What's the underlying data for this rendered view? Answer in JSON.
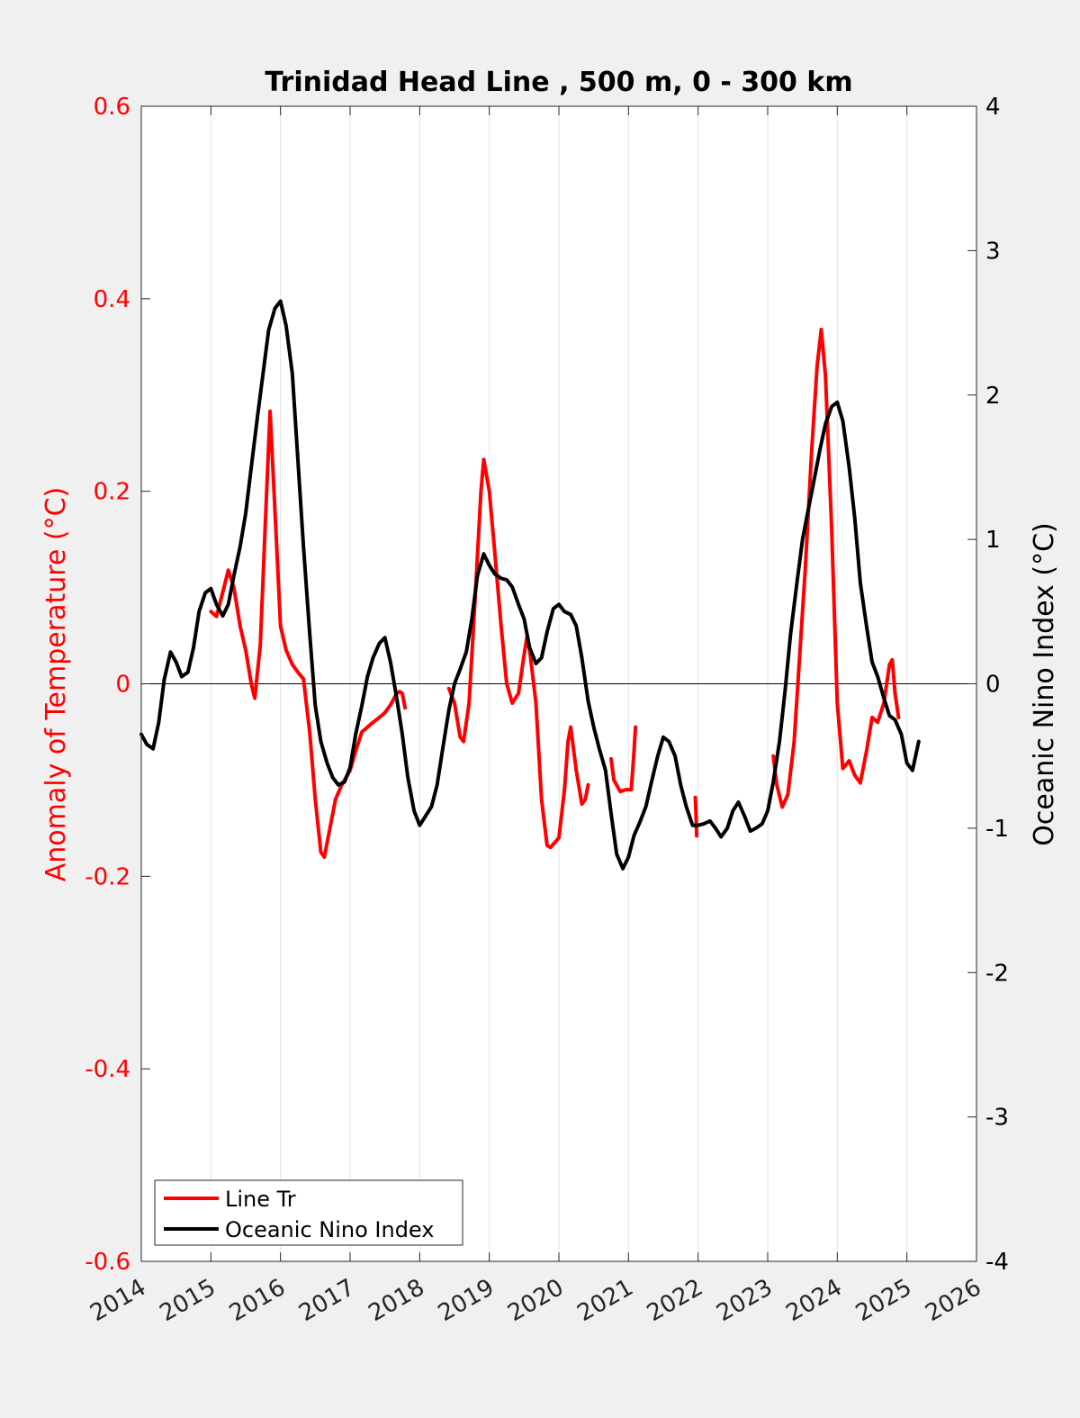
{
  "chart_data": {
    "type": "line",
    "title": "Trinidad Head Line , 500 m, 0 - 300 km",
    "ylabel_left": "Anomaly of Temperature (°C)",
    "ylabel_right": "Oceanic Nino Index (°C)",
    "xlim": [
      2014,
      2026
    ],
    "xticks": [
      "2014",
      "2015",
      "2016",
      "2017",
      "2018",
      "2019",
      "2020",
      "2021",
      "2022",
      "2023",
      "2024",
      "2025",
      "2026"
    ],
    "ylim_left": [
      -0.6,
      0.6
    ],
    "yticks_left": [
      "-0.6",
      "-0.4",
      "-0.2",
      "0",
      "0.2",
      "0.4",
      "0.6"
    ],
    "ylim_right": [
      -4,
      4
    ],
    "yticks_right": [
      "-4",
      "-3",
      "-2",
      "-1",
      "0",
      "1",
      "2",
      "3",
      "4"
    ],
    "grid": "vertical",
    "legend_position": "bottom-left",
    "colors": {
      "line_tr": "#ff0000",
      "oni": "#000000",
      "left_axis": "#ff0000"
    },
    "series": [
      {
        "name": "Line Tr",
        "axis": "left",
        "segments": [
          [
            [
              2015.0,
              0.075
            ],
            [
              2015.08,
              0.07
            ],
            [
              2015.17,
              0.095
            ],
            [
              2015.25,
              0.118
            ],
            [
              2015.33,
              0.1
            ],
            [
              2015.42,
              0.06
            ],
            [
              2015.5,
              0.035
            ],
            [
              2015.58,
              0.0
            ],
            [
              2015.63,
              -0.015
            ],
            [
              2015.71,
              0.04
            ],
            [
              2015.79,
              0.18
            ],
            [
              2015.85,
              0.283
            ],
            [
              2015.92,
              0.18
            ],
            [
              2016.0,
              0.06
            ],
            [
              2016.08,
              0.035
            ],
            [
              2016.17,
              0.02
            ],
            [
              2016.25,
              0.012
            ],
            [
              2016.33,
              0.005
            ],
            [
              2016.42,
              -0.05
            ],
            [
              2016.5,
              -0.12
            ],
            [
              2016.58,
              -0.175
            ],
            [
              2016.63,
              -0.18
            ],
            [
              2016.71,
              -0.15
            ],
            [
              2016.79,
              -0.12
            ],
            [
              2016.88,
              -0.105
            ],
            [
              2017.0,
              -0.09
            ],
            [
              2017.08,
              -0.07
            ],
            [
              2017.17,
              -0.05
            ],
            [
              2017.25,
              -0.045
            ],
            [
              2017.33,
              -0.04
            ],
            [
              2017.42,
              -0.035
            ],
            [
              2017.5,
              -0.03
            ],
            [
              2017.58,
              -0.022
            ],
            [
              2017.67,
              -0.01
            ],
            [
              2017.71,
              -0.008
            ],
            [
              2017.75,
              -0.01
            ],
            [
              2017.79,
              -0.025
            ]
          ],
          [
            [
              2018.42,
              -0.005
            ],
            [
              2018.5,
              -0.02
            ],
            [
              2018.58,
              -0.055
            ],
            [
              2018.63,
              -0.06
            ],
            [
              2018.71,
              -0.02
            ],
            [
              2018.79,
              0.08
            ],
            [
              2018.88,
              0.2
            ],
            [
              2018.92,
              0.233
            ],
            [
              2019.0,
              0.2
            ],
            [
              2019.08,
              0.135
            ],
            [
              2019.17,
              0.06
            ],
            [
              2019.25,
              0.0
            ],
            [
              2019.33,
              -0.02
            ],
            [
              2019.42,
              -0.01
            ],
            [
              2019.5,
              0.03
            ],
            [
              2019.54,
              0.048
            ],
            [
              2019.58,
              0.035
            ],
            [
              2019.67,
              -0.02
            ],
            [
              2019.75,
              -0.12
            ],
            [
              2019.83,
              -0.168
            ],
            [
              2019.88,
              -0.17
            ],
            [
              2020.0,
              -0.16
            ],
            [
              2020.08,
              -0.11
            ],
            [
              2020.13,
              -0.06
            ],
            [
              2020.17,
              -0.045
            ],
            [
              2020.25,
              -0.09
            ],
            [
              2020.33,
              -0.125
            ],
            [
              2020.38,
              -0.12
            ],
            [
              2020.42,
              -0.105
            ]
          ],
          [
            [
              2020.75,
              -0.078
            ],
            [
              2020.79,
              -0.1
            ],
            [
              2020.88,
              -0.112
            ],
            [
              2020.96,
              -0.11
            ],
            [
              2021.04,
              -0.11
            ],
            [
              2021.08,
              -0.07
            ],
            [
              2021.1,
              -0.045
            ]
          ],
          [
            [
              2021.96,
              -0.118
            ],
            [
              2021.97,
              -0.135
            ],
            [
              2021.98,
              -0.158
            ]
          ],
          [
            [
              2023.08,
              -0.075
            ],
            [
              2023.13,
              -0.105
            ],
            [
              2023.21,
              -0.128
            ],
            [
              2023.29,
              -0.115
            ],
            [
              2023.38,
              -0.06
            ],
            [
              2023.46,
              0.03
            ],
            [
              2023.54,
              0.12
            ],
            [
              2023.63,
              0.24
            ],
            [
              2023.71,
              0.33
            ],
            [
              2023.77,
              0.368
            ],
            [
              2023.83,
              0.32
            ],
            [
              2023.92,
              0.16
            ],
            [
              2024.0,
              -0.02
            ],
            [
              2024.08,
              -0.088
            ],
            [
              2024.17,
              -0.08
            ],
            [
              2024.25,
              -0.095
            ],
            [
              2024.33,
              -0.103
            ],
            [
              2024.42,
              -0.07
            ],
            [
              2024.5,
              -0.035
            ],
            [
              2024.58,
              -0.04
            ],
            [
              2024.67,
              -0.02
            ],
            [
              2024.75,
              0.02
            ],
            [
              2024.79,
              0.025
            ],
            [
              2024.83,
              -0.01
            ],
            [
              2024.88,
              -0.035
            ]
          ]
        ]
      },
      {
        "name": "Oceanic Nino Index",
        "axis": "right",
        "segments": [
          [
            [
              2014.0,
              -0.35
            ],
            [
              2014.08,
              -0.42
            ],
            [
              2014.17,
              -0.45
            ],
            [
              2014.25,
              -0.27
            ],
            [
              2014.33,
              0.03
            ],
            [
              2014.42,
              0.22
            ],
            [
              2014.5,
              0.15
            ],
            [
              2014.58,
              0.05
            ],
            [
              2014.67,
              0.08
            ],
            [
              2014.75,
              0.25
            ],
            [
              2014.83,
              0.5
            ],
            [
              2014.92,
              0.63
            ],
            [
              2015.0,
              0.66
            ],
            [
              2015.08,
              0.55
            ],
            [
              2015.17,
              0.47
            ],
            [
              2015.25,
              0.55
            ],
            [
              2015.33,
              0.75
            ],
            [
              2015.42,
              0.95
            ],
            [
              2015.5,
              1.18
            ],
            [
              2015.58,
              1.5
            ],
            [
              2015.67,
              1.85
            ],
            [
              2015.75,
              2.15
            ],
            [
              2015.83,
              2.45
            ],
            [
              2015.92,
              2.6
            ],
            [
              2016.0,
              2.65
            ],
            [
              2016.08,
              2.48
            ],
            [
              2016.17,
              2.15
            ],
            [
              2016.25,
              1.55
            ],
            [
              2016.33,
              0.95
            ],
            [
              2016.42,
              0.35
            ],
            [
              2016.5,
              -0.15
            ],
            [
              2016.58,
              -0.4
            ],
            [
              2016.67,
              -0.55
            ],
            [
              2016.75,
              -0.65
            ],
            [
              2016.83,
              -0.7
            ],
            [
              2016.92,
              -0.68
            ],
            [
              2017.0,
              -0.58
            ],
            [
              2017.08,
              -0.35
            ],
            [
              2017.17,
              -0.15
            ],
            [
              2017.25,
              0.05
            ],
            [
              2017.33,
              0.18
            ],
            [
              2017.42,
              0.28
            ],
            [
              2017.5,
              0.32
            ],
            [
              2017.58,
              0.15
            ],
            [
              2017.67,
              -0.1
            ],
            [
              2017.75,
              -0.35
            ],
            [
              2017.83,
              -0.65
            ],
            [
              2017.92,
              -0.88
            ],
            [
              2018.0,
              -0.98
            ],
            [
              2018.08,
              -0.92
            ],
            [
              2018.17,
              -0.85
            ],
            [
              2018.25,
              -0.7
            ],
            [
              2018.33,
              -0.45
            ],
            [
              2018.42,
              -0.18
            ],
            [
              2018.5,
              0.0
            ],
            [
              2018.58,
              0.1
            ],
            [
              2018.67,
              0.22
            ],
            [
              2018.75,
              0.45
            ],
            [
              2018.83,
              0.75
            ],
            [
              2018.92,
              0.9
            ],
            [
              2019.0,
              0.82
            ],
            [
              2019.08,
              0.76
            ],
            [
              2019.17,
              0.73
            ],
            [
              2019.25,
              0.72
            ],
            [
              2019.33,
              0.67
            ],
            [
              2019.42,
              0.55
            ],
            [
              2019.5,
              0.45
            ],
            [
              2019.58,
              0.25
            ],
            [
              2019.67,
              0.14
            ],
            [
              2019.75,
              0.18
            ],
            [
              2019.83,
              0.36
            ],
            [
              2019.92,
              0.52
            ],
            [
              2020.0,
              0.55
            ],
            [
              2020.08,
              0.5
            ],
            [
              2020.17,
              0.48
            ],
            [
              2020.25,
              0.4
            ],
            [
              2020.33,
              0.18
            ],
            [
              2020.42,
              -0.12
            ],
            [
              2020.5,
              -0.3
            ],
            [
              2020.58,
              -0.45
            ],
            [
              2020.67,
              -0.6
            ],
            [
              2020.75,
              -0.9
            ],
            [
              2020.83,
              -1.18
            ],
            [
              2020.92,
              -1.28
            ],
            [
              2021.0,
              -1.2
            ],
            [
              2021.08,
              -1.05
            ],
            [
              2021.17,
              -0.95
            ],
            [
              2021.25,
              -0.85
            ],
            [
              2021.33,
              -0.68
            ],
            [
              2021.42,
              -0.5
            ],
            [
              2021.5,
              -0.37
            ],
            [
              2021.58,
              -0.4
            ],
            [
              2021.67,
              -0.5
            ],
            [
              2021.75,
              -0.7
            ],
            [
              2021.83,
              -0.85
            ],
            [
              2021.92,
              -0.98
            ],
            [
              2022.0,
              -0.98
            ],
            [
              2022.08,
              -0.97
            ],
            [
              2022.17,
              -0.95
            ],
            [
              2022.25,
              -1.0
            ],
            [
              2022.33,
              -1.06
            ],
            [
              2022.42,
              -1.0
            ],
            [
              2022.5,
              -0.88
            ],
            [
              2022.58,
              -0.82
            ],
            [
              2022.67,
              -0.92
            ],
            [
              2022.75,
              -1.02
            ],
            [
              2022.83,
              -1.0
            ],
            [
              2022.92,
              -0.97
            ],
            [
              2023.0,
              -0.88
            ],
            [
              2023.08,
              -0.68
            ],
            [
              2023.17,
              -0.4
            ],
            [
              2023.25,
              -0.05
            ],
            [
              2023.33,
              0.35
            ],
            [
              2023.42,
              0.7
            ],
            [
              2023.5,
              1.0
            ],
            [
              2023.58,
              1.2
            ],
            [
              2023.67,
              1.42
            ],
            [
              2023.75,
              1.62
            ],
            [
              2023.83,
              1.8
            ],
            [
              2023.92,
              1.92
            ],
            [
              2024.0,
              1.95
            ],
            [
              2024.08,
              1.82
            ],
            [
              2024.17,
              1.5
            ],
            [
              2024.25,
              1.15
            ],
            [
              2024.33,
              0.7
            ],
            [
              2024.42,
              0.4
            ],
            [
              2024.5,
              0.15
            ],
            [
              2024.58,
              0.05
            ],
            [
              2024.67,
              -0.1
            ],
            [
              2024.75,
              -0.22
            ],
            [
              2024.83,
              -0.25
            ],
            [
              2024.92,
              -0.35
            ],
            [
              2025.0,
              -0.55
            ],
            [
              2025.08,
              -0.6
            ],
            [
              2025.17,
              -0.4
            ]
          ]
        ]
      }
    ]
  }
}
